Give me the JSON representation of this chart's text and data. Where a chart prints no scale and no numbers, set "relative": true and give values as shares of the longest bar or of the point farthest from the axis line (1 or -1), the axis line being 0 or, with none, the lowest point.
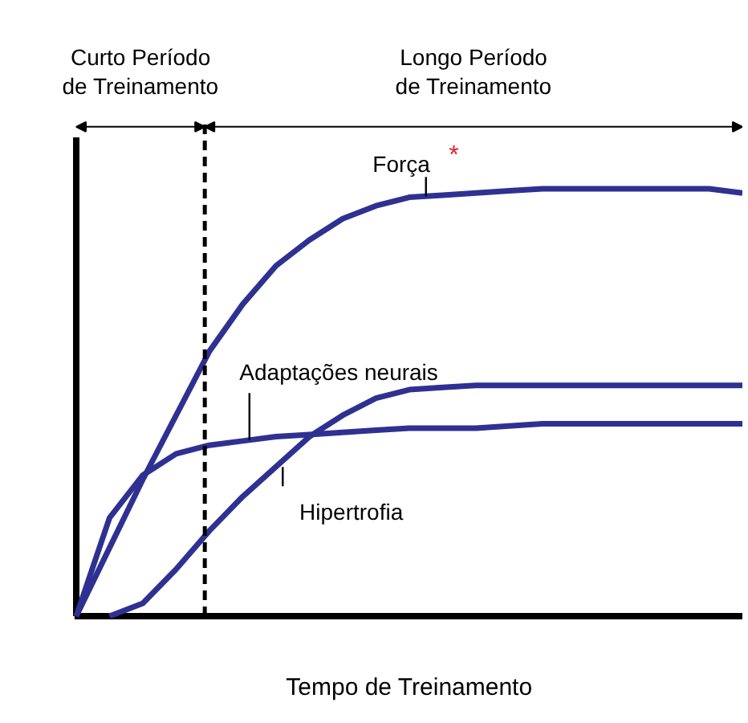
{
  "chart_data": {
    "type": "line",
    "relative": true,
    "xlabel": "Tempo de Treinamento",
    "marker": "none",
    "line_style": "solid",
    "categories": [
      null,
      null,
      null,
      null,
      null,
      null,
      null,
      null,
      null,
      null,
      null,
      null,
      null,
      null,
      null,
      null,
      null,
      null,
      null,
      null,
      null
    ],
    "series": [
      {
        "name": "Força",
        "color": "#2e3192",
        "values": [
          0,
          0.16,
          0.32,
          0.47,
          0.62,
          0.73,
          0.82,
          0.88,
          0.93,
          0.96,
          0.98,
          0.985,
          0.99,
          0.995,
          1,
          1,
          1,
          1,
          1,
          1,
          0.99
        ]
      },
      {
        "name": "Adaptações neurais",
        "color": "#2e3192",
        "values": [
          0,
          0.23,
          0.33,
          0.38,
          0.4,
          0.41,
          0.42,
          0.425,
          0.43,
          0.435,
          0.44,
          0.44,
          0.44,
          0.445,
          0.45,
          0.45,
          0.45,
          0.45,
          0.45,
          0.45,
          0.45
        ]
      },
      {
        "name": "Hipertrofia",
        "color": "#2e3192",
        "values": [
          null,
          0,
          0.03,
          0.11,
          0.2,
          0.28,
          0.35,
          0.42,
          0.47,
          0.51,
          0.53,
          0.535,
          0.54,
          0.54,
          0.54,
          0.54,
          0.54,
          0.54,
          0.54,
          0.54,
          0.54
        ]
      }
    ],
    "annotations": [
      "Curto Período de Treinamento",
      "Longo Período de Treinamento",
      "*"
    ]
  }
}
